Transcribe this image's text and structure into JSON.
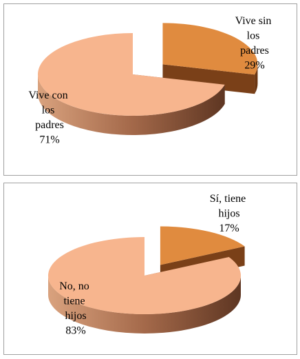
{
  "chart_data": [
    {
      "type": "pie3d",
      "categories": [
        "Vive sin los padres",
        "Vive con los padres"
      ],
      "values": [
        29,
        71
      ],
      "value_labels": [
        "29%",
        "71%"
      ],
      "colors": [
        "#e08b3f",
        "#f7b58e"
      ]
    },
    {
      "type": "pie3d",
      "categories": [
        "Sí, tiene hijos",
        "No, no tiene hijos"
      ],
      "values": [
        17,
        83
      ],
      "value_labels": [
        "17%",
        "83%"
      ],
      "colors": [
        "#e08b3f",
        "#f7b58e"
      ]
    }
  ]
}
